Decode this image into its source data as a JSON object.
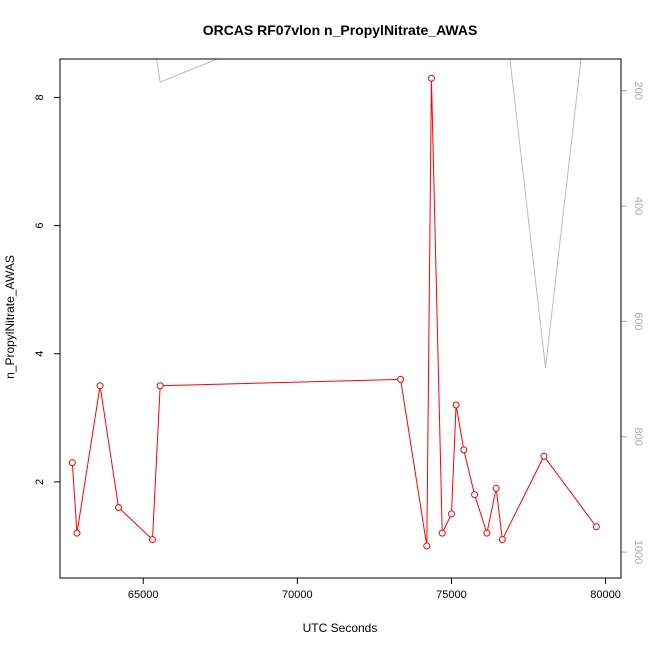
{
  "chart_data": {
    "type": "line",
    "title": "ORCAS RF07vlon n_PropylNitrate_AWAS",
    "xlabel": "UTC Seconds",
    "ylabel": "n_PropylNitrate_AWAS",
    "xlim": [
      62300,
      80500
    ],
    "ylim": [
      0.5,
      8.6
    ],
    "x_ticks": [
      65000,
      70000,
      75000,
      80000
    ],
    "y_ticks": [
      2,
      4,
      6,
      8
    ],
    "y2lim": [
      1045,
      145
    ],
    "y2_ticks": [
      200,
      400,
      600,
      800,
      1000
    ],
    "grid": false,
    "series": [
      {
        "role": "primary",
        "color": "#ff0000",
        "marker": "open-circle",
        "x": [
          62700,
          62850,
          63600,
          64200,
          65300,
          65550,
          73350,
          74200,
          74350,
          74700,
          75000,
          75150,
          75400,
          75750,
          76150,
          76450,
          76650,
          78000,
          79700
        ],
        "y": [
          2.3,
          1.2,
          3.5,
          1.6,
          1.1,
          3.5,
          3.6,
          1.0,
          8.3,
          1.2,
          1.5,
          3.2,
          2.5,
          1.8,
          1.2,
          1.9,
          1.1,
          2.4,
          1.3
        ]
      },
      {
        "role": "secondary",
        "color": "#bbbbbb",
        "axis": "right",
        "x": [
          65300,
          65550,
          67400,
          79000
        ],
        "y2": [
          100,
          185,
          145,
          145
        ],
        "x_b": [
          76800,
          78050,
          79300
        ],
        "y2_b": [
          100,
          680,
          100
        ]
      }
    ]
  }
}
